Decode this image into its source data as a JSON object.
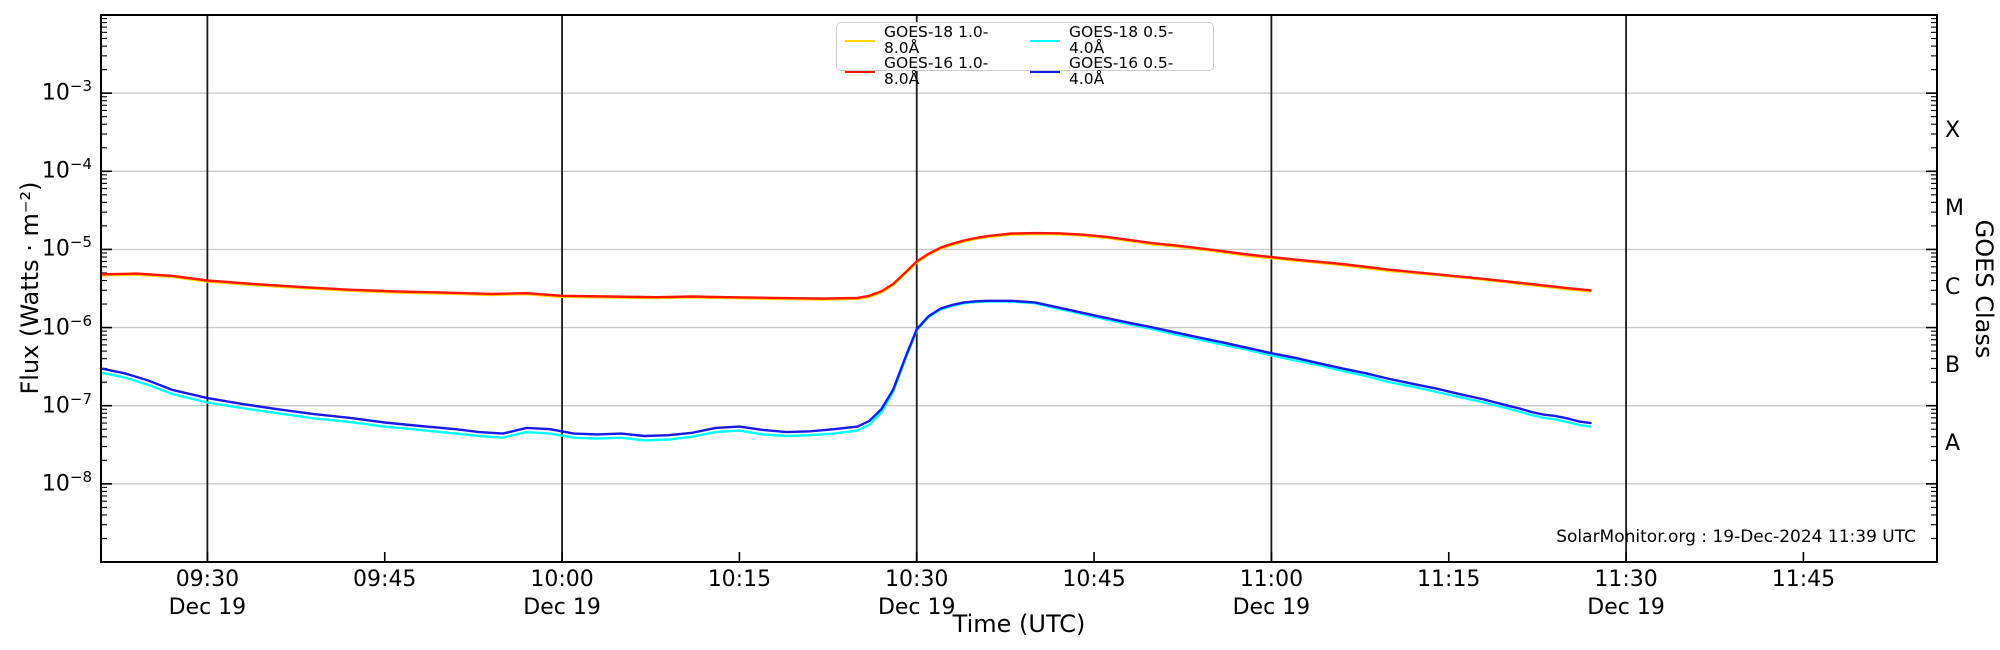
{
  "watermark": {
    "text": "SolarMonitor.org : 19-Dec-2024 11:39 UTC"
  },
  "colors": {
    "grid_horizontal": "#c9c9c9",
    "grid_vertical": "#1a1a1a",
    "spine": "#000000",
    "tick": "#000000"
  },
  "legend": {
    "columns": 2,
    "items": [
      {
        "label": "GOES-18 1.0-8.0Å",
        "color": "#ffd400",
        "slug": "goes18-long"
      },
      {
        "label": "GOES-18 0.5-4.0Å",
        "color": "#00ffff",
        "slug": "goes18-short"
      },
      {
        "label": "GOES-16 1.0-8.0Å",
        "color": "#ff1500",
        "slug": "goes16-long"
      },
      {
        "label": "GOES-16 0.5-4.0Å",
        "color": "#1a1ae8",
        "slug": "goes16-short"
      }
    ]
  },
  "chart_data": {
    "type": "line",
    "title": "",
    "xlabel": "Time (UTC)",
    "ylabel": "Flux (Watts · m⁻²)",
    "ylabel_right": "GOES Class",
    "x_unit": "minutes since 00:00 UTC, 19 Dec 2024",
    "xlim": [
      561,
      716.3
    ],
    "ylim": [
      1e-09,
      0.01
    ],
    "yscale": "log",
    "grid": {
      "horizontal_decades": true,
      "vertical_30min": true
    },
    "legend_position": "top-center",
    "xticks": [
      {
        "m": 570,
        "label": "09:30",
        "day": "Dec 19"
      },
      {
        "m": 585,
        "label": "09:45"
      },
      {
        "m": 600,
        "label": "10:00",
        "day": "Dec 19"
      },
      {
        "m": 615,
        "label": "10:15"
      },
      {
        "m": 630,
        "label": "10:30",
        "day": "Dec 19"
      },
      {
        "m": 645,
        "label": "10:45"
      },
      {
        "m": 660,
        "label": "11:00",
        "day": "Dec 19"
      },
      {
        "m": 675,
        "label": "11:15"
      },
      {
        "m": 690,
        "label": "11:30",
        "day": "Dec 19"
      },
      {
        "m": 705,
        "label": "11:45"
      }
    ],
    "ytick_exponents": [
      -3,
      -4,
      -5,
      -6,
      -7,
      -8
    ],
    "goes_classes": [
      {
        "label": "X",
        "exp": -3.5
      },
      {
        "label": "M",
        "exp": -4.5
      },
      {
        "label": "C",
        "exp": -5.5
      },
      {
        "label": "B",
        "exp": -6.5
      },
      {
        "label": "A",
        "exp": -7.5
      }
    ],
    "series": [
      {
        "name": "GOES-18 1.0-8.0Å",
        "slug": "goes18-long",
        "color": "#ffd400",
        "width": 2.4,
        "points": [
          [
            561,
            4.66e-06
          ],
          [
            564,
            4.75e-06
          ],
          [
            567,
            4.46e-06
          ],
          [
            570,
            3.88e-06
          ],
          [
            574,
            3.49e-06
          ],
          [
            578,
            3.2e-06
          ],
          [
            582,
            2.96e-06
          ],
          [
            586,
            2.81e-06
          ],
          [
            590,
            2.72e-06
          ],
          [
            594,
            2.62e-06
          ],
          [
            597,
            2.67e-06
          ],
          [
            600,
            2.47e-06
          ],
          [
            604,
            2.43e-06
          ],
          [
            608,
            2.38e-06
          ],
          [
            611,
            2.43e-06
          ],
          [
            614,
            2.38e-06
          ],
          [
            618,
            2.33e-06
          ],
          [
            622,
            2.28e-06
          ],
          [
            625,
            2.33e-06
          ],
          [
            626,
            2.47e-06
          ],
          [
            627,
            2.81e-06
          ],
          [
            628,
            3.49e-06
          ],
          [
            629,
            4.85e-06
          ],
          [
            630,
            6.79e-06
          ],
          [
            631,
            8.54e-06
          ],
          [
            632,
            1.02e-05
          ],
          [
            633,
            1.14e-05
          ],
          [
            634,
            1.26e-05
          ],
          [
            635,
            1.36e-05
          ],
          [
            636,
            1.44e-05
          ],
          [
            637,
            1.49e-05
          ],
          [
            638,
            1.55e-05
          ],
          [
            640,
            1.57e-05
          ],
          [
            642,
            1.56e-05
          ],
          [
            644,
            1.5e-05
          ],
          [
            646,
            1.41e-05
          ],
          [
            648,
            1.28e-05
          ],
          [
            650,
            1.16e-05
          ],
          [
            652,
            1.09e-05
          ],
          [
            655,
            9.6e-06
          ],
          [
            658,
            8.3e-06
          ],
          [
            662,
            7.2e-06
          ],
          [
            666,
            6.3e-06
          ],
          [
            670,
            5.3e-06
          ],
          [
            674,
            4.7e-06
          ],
          [
            678,
            4.1e-06
          ],
          [
            682,
            3.5e-06
          ],
          [
            685,
            3.1e-06
          ],
          [
            687,
            2.9e-06
          ]
        ]
      },
      {
        "name": "GOES-18 0.5-4.0Å",
        "slug": "goes18-short",
        "color": "#00ffff",
        "width": 2.4,
        "points": [
          [
            561,
            2.65e-07
          ],
          [
            563,
            2.3e-07
          ],
          [
            565,
            1.85e-07
          ],
          [
            567,
            1.42e-07
          ],
          [
            570,
            1.1e-07
          ],
          [
            573,
            9.3e-08
          ],
          [
            576,
            8e-08
          ],
          [
            579,
            6.9e-08
          ],
          [
            582,
            6.2e-08
          ],
          [
            585,
            5.4e-08
          ],
          [
            588,
            4.9e-08
          ],
          [
            591,
            4.4e-08
          ],
          [
            593,
            4.1e-08
          ],
          [
            595,
            3.9e-08
          ],
          [
            597,
            4.6e-08
          ],
          [
            599,
            4.4e-08
          ],
          [
            601,
            3.9e-08
          ],
          [
            603,
            3.8e-08
          ],
          [
            605,
            3.9e-08
          ],
          [
            607,
            3.6e-08
          ],
          [
            609,
            3.7e-08
          ],
          [
            611,
            4e-08
          ],
          [
            613,
            4.6e-08
          ],
          [
            615,
            4.8e-08
          ],
          [
            617,
            4.3e-08
          ],
          [
            619,
            4.1e-08
          ],
          [
            621,
            4.2e-08
          ],
          [
            623,
            4.4e-08
          ],
          [
            625,
            4.8e-08
          ],
          [
            626,
            5.7e-08
          ],
          [
            627,
            8.1e-08
          ],
          [
            628,
            1.5e-07
          ],
          [
            629,
            3.8e-07
          ],
          [
            630,
            9.2e-07
          ],
          [
            631,
            1.36e-06
          ],
          [
            632,
            1.7e-06
          ],
          [
            633,
            1.9e-06
          ],
          [
            634,
            2.05e-06
          ],
          [
            635,
            2.12e-06
          ],
          [
            636,
            2.15e-06
          ],
          [
            638,
            2.15e-06
          ],
          [
            640,
            2.05e-06
          ],
          [
            642,
            1.74e-06
          ],
          [
            644,
            1.49e-06
          ],
          [
            646,
            1.27e-06
          ],
          [
            648,
            1.1e-06
          ],
          [
            650,
            9.5e-07
          ],
          [
            652,
            8.1e-07
          ],
          [
            654,
            7e-07
          ],
          [
            656,
            6e-07
          ],
          [
            658,
            5.2e-07
          ],
          [
            660,
            4.4e-07
          ],
          [
            662,
            3.8e-07
          ],
          [
            664,
            3.3e-07
          ],
          [
            666,
            2.8e-07
          ],
          [
            668,
            2.4e-07
          ],
          [
            670,
            2e-07
          ],
          [
            672,
            1.75e-07
          ],
          [
            674,
            1.5e-07
          ],
          [
            676,
            1.28e-07
          ],
          [
            678,
            1.1e-07
          ],
          [
            680,
            9.2e-08
          ],
          [
            681,
            8.4e-08
          ],
          [
            682,
            7.6e-08
          ],
          [
            683,
            7e-08
          ],
          [
            684,
            6.7e-08
          ],
          [
            685,
            6.2e-08
          ],
          [
            686,
            5.7e-08
          ],
          [
            687,
            5.4e-08
          ]
        ]
      },
      {
        "name": "GOES-16 1.0-8.0Å",
        "slug": "goes16-long",
        "color": "#ff1500",
        "width": 2.4,
        "points": [
          [
            561,
            4.8e-06
          ],
          [
            564,
            4.9e-06
          ],
          [
            567,
            4.6e-06
          ],
          [
            570,
            4e-06
          ],
          [
            574,
            3.6e-06
          ],
          [
            578,
            3.3e-06
          ],
          [
            582,
            3.05e-06
          ],
          [
            586,
            2.9e-06
          ],
          [
            590,
            2.8e-06
          ],
          [
            594,
            2.7e-06
          ],
          [
            597,
            2.75e-06
          ],
          [
            600,
            2.55e-06
          ],
          [
            604,
            2.5e-06
          ],
          [
            608,
            2.45e-06
          ],
          [
            611,
            2.5e-06
          ],
          [
            614,
            2.45e-06
          ],
          [
            618,
            2.4e-06
          ],
          [
            622,
            2.35e-06
          ],
          [
            625,
            2.4e-06
          ],
          [
            626,
            2.55e-06
          ],
          [
            627,
            2.9e-06
          ],
          [
            628,
            3.6e-06
          ],
          [
            629,
            5e-06
          ],
          [
            630,
            7e-06
          ],
          [
            631,
            8.8e-06
          ],
          [
            632,
            1.05e-05
          ],
          [
            633,
            1.18e-05
          ],
          [
            634,
            1.3e-05
          ],
          [
            635,
            1.4e-05
          ],
          [
            636,
            1.48e-05
          ],
          [
            637,
            1.54e-05
          ],
          [
            638,
            1.6e-05
          ],
          [
            640,
            1.62e-05
          ],
          [
            642,
            1.61e-05
          ],
          [
            644,
            1.55e-05
          ],
          [
            646,
            1.45e-05
          ],
          [
            648,
            1.32e-05
          ],
          [
            650,
            1.2e-05
          ],
          [
            652,
            1.12e-05
          ],
          [
            655,
            9.9e-06
          ],
          [
            658,
            8.6e-06
          ],
          [
            662,
            7.4e-06
          ],
          [
            666,
            6.5e-06
          ],
          [
            670,
            5.5e-06
          ],
          [
            674,
            4.8e-06
          ],
          [
            678,
            4.2e-06
          ],
          [
            682,
            3.6e-06
          ],
          [
            685,
            3.2e-06
          ],
          [
            687,
            3e-06
          ]
        ]
      },
      {
        "name": "GOES-16 0.5-4.0Å",
        "slug": "goes16-short",
        "color": "#1a1ae8",
        "width": 2.4,
        "points": [
          [
            561,
            3e-07
          ],
          [
            563,
            2.6e-07
          ],
          [
            565,
            2.1e-07
          ],
          [
            567,
            1.6e-07
          ],
          [
            570,
            1.25e-07
          ],
          [
            573,
            1.05e-07
          ],
          [
            576,
            9e-08
          ],
          [
            579,
            7.8e-08
          ],
          [
            582,
            7e-08
          ],
          [
            585,
            6.1e-08
          ],
          [
            588,
            5.5e-08
          ],
          [
            591,
            5e-08
          ],
          [
            593,
            4.6e-08
          ],
          [
            595,
            4.4e-08
          ],
          [
            597,
            5.2e-08
          ],
          [
            599,
            5e-08
          ],
          [
            601,
            4.4e-08
          ],
          [
            603,
            4.3e-08
          ],
          [
            605,
            4.4e-08
          ],
          [
            607,
            4.1e-08
          ],
          [
            609,
            4.2e-08
          ],
          [
            611,
            4.5e-08
          ],
          [
            613,
            5.2e-08
          ],
          [
            615,
            5.4e-08
          ],
          [
            617,
            4.9e-08
          ],
          [
            619,
            4.6e-08
          ],
          [
            621,
            4.7e-08
          ],
          [
            623,
            5e-08
          ],
          [
            625,
            5.4e-08
          ],
          [
            626,
            6.4e-08
          ],
          [
            627,
            9e-08
          ],
          [
            628,
            1.6e-07
          ],
          [
            629,
            4e-07
          ],
          [
            630,
            9.5e-07
          ],
          [
            631,
            1.4e-06
          ],
          [
            632,
            1.75e-06
          ],
          [
            633,
            1.95e-06
          ],
          [
            634,
            2.1e-06
          ],
          [
            635,
            2.17e-06
          ],
          [
            636,
            2.2e-06
          ],
          [
            638,
            2.2e-06
          ],
          [
            640,
            2.1e-06
          ],
          [
            642,
            1.8e-06
          ],
          [
            644,
            1.55e-06
          ],
          [
            646,
            1.33e-06
          ],
          [
            648,
            1.15e-06
          ],
          [
            650,
            1e-06
          ],
          [
            652,
            8.6e-07
          ],
          [
            654,
            7.4e-07
          ],
          [
            656,
            6.4e-07
          ],
          [
            658,
            5.5e-07
          ],
          [
            660,
            4.7e-07
          ],
          [
            662,
            4.1e-07
          ],
          [
            664,
            3.5e-07
          ],
          [
            666,
            3e-07
          ],
          [
            668,
            2.6e-07
          ],
          [
            670,
            2.2e-07
          ],
          [
            672,
            1.9e-07
          ],
          [
            674,
            1.65e-07
          ],
          [
            676,
            1.4e-07
          ],
          [
            678,
            1.2e-07
          ],
          [
            680,
            1e-07
          ],
          [
            681,
            9.2e-08
          ],
          [
            682,
            8.3e-08
          ],
          [
            683,
            7.7e-08
          ],
          [
            684,
            7.4e-08
          ],
          [
            685,
            6.9e-08
          ],
          [
            686,
            6.3e-08
          ],
          [
            687,
            6e-08
          ]
        ]
      }
    ]
  }
}
